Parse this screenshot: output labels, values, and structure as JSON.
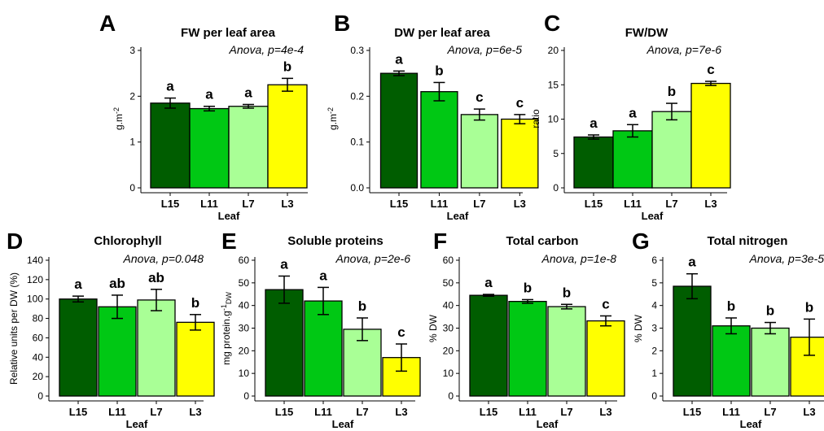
{
  "chart_data": [
    {
      "type": "bar",
      "panel": "A",
      "title": "FW per leaf area",
      "anova": "Anova, p=4e-4",
      "ylabel": "g.m-2",
      "xlabel": "Leaf",
      "categories": [
        "L15",
        "L11",
        "L7",
        "L3"
      ],
      "values": [
        1.85,
        1.73,
        1.78,
        2.25
      ],
      "errors": [
        0.11,
        0.05,
        0.04,
        0.14
      ],
      "letters": [
        "a",
        "a",
        "a",
        "b"
      ],
      "ylim": [
        0,
        3
      ],
      "yticks": [
        "0",
        "1",
        "2",
        "3"
      ]
    },
    {
      "type": "bar",
      "panel": "B",
      "title": "DW per leaf area",
      "anova": "Anova, p=6e-5",
      "ylabel": "g.m-2",
      "xlabel": "Leaf",
      "categories": [
        "L15",
        "L11",
        "L7",
        "L3"
      ],
      "values": [
        0.25,
        0.21,
        0.16,
        0.15
      ],
      "errors": [
        0.005,
        0.02,
        0.012,
        0.01
      ],
      "letters": [
        "a",
        "b",
        "c",
        "c"
      ],
      "ylim": [
        0,
        0.3
      ],
      "yticks": [
        "0.0",
        "0.1",
        "0.2",
        "0.3"
      ]
    },
    {
      "type": "bar",
      "panel": "C",
      "title": "FW/DW",
      "anova": "Anova, p=7e-6",
      "ylabel": "ratio",
      "xlabel": "Leaf",
      "categories": [
        "L15",
        "L11",
        "L7",
        "L3"
      ],
      "values": [
        7.4,
        8.3,
        11.1,
        15.2
      ],
      "errors": [
        0.3,
        0.9,
        1.2,
        0.3
      ],
      "letters": [
        "a",
        "a",
        "b",
        "c"
      ],
      "ylim": [
        0,
        20
      ],
      "yticks": [
        "0",
        "5",
        "10",
        "15",
        "20"
      ]
    },
    {
      "type": "bar",
      "panel": "D",
      "title": "Chlorophyll",
      "anova": "Anova, p=0.048",
      "ylabel": "Relative units per DW (%)",
      "xlabel": "Leaf",
      "categories": [
        "L15",
        "L11",
        "L7",
        "L3"
      ],
      "values": [
        100,
        92,
        99,
        76
      ],
      "errors": [
        3,
        12,
        11,
        8
      ],
      "letters": [
        "a",
        "ab",
        "ab",
        "b"
      ],
      "ylim": [
        0,
        140
      ],
      "yticks": [
        "0",
        "20",
        "40",
        "60",
        "80",
        "100",
        "120",
        "140"
      ]
    },
    {
      "type": "bar",
      "panel": "E",
      "title": "Soluble proteins",
      "anova": "Anova, p=2e-6",
      "ylabel": "mg protein.g-1DW",
      "xlabel": "Leaf",
      "categories": [
        "L15",
        "L11",
        "L7",
        "L3"
      ],
      "values": [
        47,
        42,
        29.5,
        17
      ],
      "errors": [
        6,
        6,
        5,
        6
      ],
      "letters": [
        "a",
        "a",
        "b",
        "c"
      ],
      "ylim": [
        0,
        60
      ],
      "yticks": [
        "0",
        "10",
        "20",
        "30",
        "40",
        "50",
        "60"
      ]
    },
    {
      "type": "bar",
      "panel": "F",
      "title": "Total carbon",
      "anova": "Anova, p=1e-8",
      "ylabel": "% DW",
      "xlabel": "Leaf",
      "categories": [
        "L15",
        "L11",
        "L7",
        "L3"
      ],
      "values": [
        44.5,
        41.8,
        39.5,
        33.2
      ],
      "errors": [
        0.4,
        0.8,
        1.0,
        2.2
      ],
      "letters": [
        "a",
        "b",
        "b",
        "c"
      ],
      "ylim": [
        0,
        60
      ],
      "yticks": [
        "0",
        "10",
        "20",
        "30",
        "40",
        "50",
        "60"
      ]
    },
    {
      "type": "bar",
      "panel": "G",
      "title": "Total nitrogen",
      "anova": "Anova, p=3e-5",
      "ylabel": "% DW",
      "xlabel": "Leaf",
      "categories": [
        "L15",
        "L11",
        "L7",
        "L3"
      ],
      "values": [
        4.85,
        3.1,
        3.0,
        2.6
      ],
      "errors": [
        0.55,
        0.35,
        0.25,
        0.8
      ],
      "letters": [
        "a",
        "b",
        "b",
        "b"
      ],
      "ylim": [
        0,
        6
      ],
      "yticks": [
        "0",
        "1",
        "2",
        "3",
        "4",
        "5",
        "6"
      ]
    }
  ],
  "colors": {
    "L15": "#005d00",
    "L11": "#00c814",
    "L7": "#a9ff96",
    "L3": "#ffff00"
  }
}
